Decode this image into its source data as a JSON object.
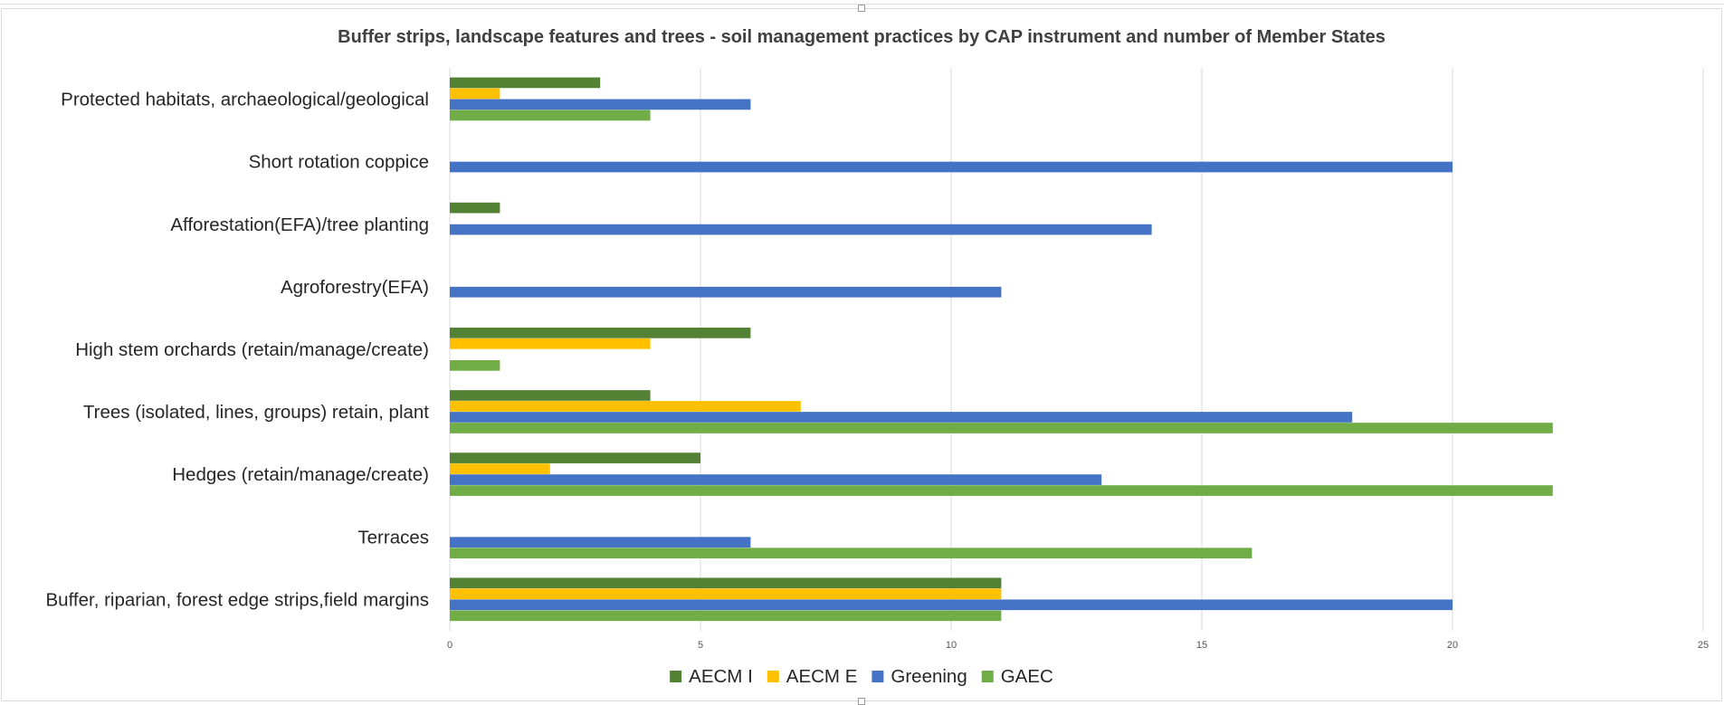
{
  "chart_data": {
    "type": "bar",
    "orientation": "horizontal",
    "title": "Buffer strips, landscape features and trees - soil management practices by CAP instrument and number of Member States",
    "xlabel": "",
    "ylabel": "",
    "xlim": [
      0,
      25
    ],
    "xticks": [
      0,
      5,
      10,
      15,
      20,
      25
    ],
    "grid": "vertical",
    "legend_position": "bottom",
    "categories": [
      "Protected habitats, archaeological/geological",
      "Short rotation coppice",
      "Afforestation(EFA)/tree planting",
      "Agroforestry(EFA)",
      "High stem orchards (retain/manage/create)",
      "Trees (isolated, lines, groups) retain, plant",
      "Hedges (retain/manage/create)",
      "Terraces",
      "Buffer, riparian, forest edge strips,field margins "
    ],
    "series": [
      {
        "name": "AECM I",
        "color": "#548235",
        "values": [
          3,
          0,
          1,
          0,
          6,
          4,
          5,
          0,
          11
        ]
      },
      {
        "name": "AECM E",
        "color": "#ffc000",
        "values": [
          1,
          0,
          0,
          0,
          4,
          7,
          2,
          0,
          11
        ]
      },
      {
        "name": "Greening",
        "color": "#4472c4",
        "values": [
          6,
          20,
          14,
          11,
          0,
          18,
          13,
          6,
          20
        ]
      },
      {
        "name": "GAEC",
        "color": "#70ad47",
        "values": [
          4,
          0,
          0,
          0,
          1,
          22,
          22,
          16,
          11
        ]
      }
    ]
  }
}
